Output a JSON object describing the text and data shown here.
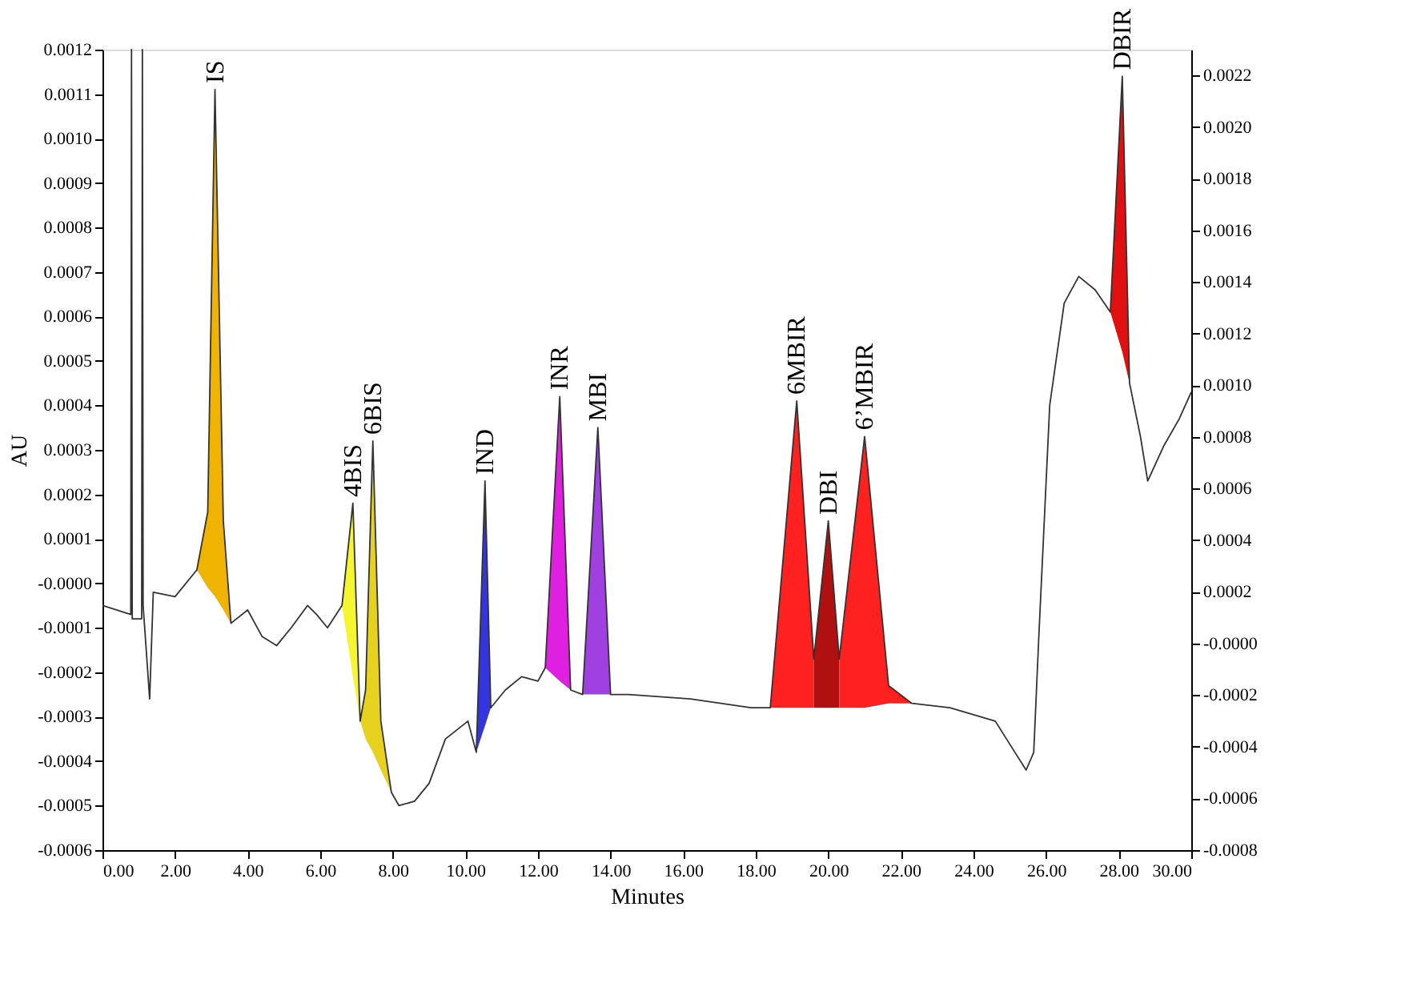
{
  "chart_data": {
    "type": "line",
    "xlabel": "Minutes",
    "ylabel": "AU",
    "xlim": [
      0,
      30
    ],
    "xticks": [
      {
        "value": 0,
        "label": "0.00"
      },
      {
        "value": 2,
        "label": "2.00"
      },
      {
        "value": 4,
        "label": "4.00"
      },
      {
        "value": 6,
        "label": "6.00"
      },
      {
        "value": 8,
        "label": "8.00"
      },
      {
        "value": 10,
        "label": "10.00"
      },
      {
        "value": 12,
        "label": "12.00"
      },
      {
        "value": 14,
        "label": "14.00"
      },
      {
        "value": 16,
        "label": "16.00"
      },
      {
        "value": 18,
        "label": "18.00"
      },
      {
        "value": 20,
        "label": "20.00"
      },
      {
        "value": 22,
        "label": "22.00"
      },
      {
        "value": 24,
        "label": "24.00"
      },
      {
        "value": 26,
        "label": "26.00"
      },
      {
        "value": 28,
        "label": "28.00"
      },
      {
        "value": 30,
        "label": "30.00"
      }
    ],
    "ylim": [
      -0.0006,
      0.0012
    ],
    "yticks": [
      -0.0006,
      -0.0005,
      -0.0004,
      -0.0003,
      -0.0002,
      -0.0001,
      {
        "value": 0,
        "label": "-0.0000"
      },
      0.0001,
      0.0002,
      0.0003,
      0.0004,
      0.0005,
      0.0006,
      0.0007,
      0.0008,
      0.0009,
      {
        "value": 0.001,
        "label": "0.0010"
      },
      0.0011,
      0.0012
    ],
    "y2lim": [
      -0.0008,
      0.0023
    ],
    "y2ticks": [
      -0.0008,
      -0.0006,
      -0.0004,
      -0.0002,
      {
        "value": 0,
        "label": "-0.0000"
      },
      0.0002,
      0.0004,
      0.0006,
      0.0008,
      {
        "value": 0.001,
        "label": "0.0010"
      },
      0.0012,
      0.0014,
      0.0016,
      0.0018,
      {
        "value": 0.002,
        "label": "0.0020"
      },
      0.0022
    ],
    "series": [
      {
        "color": "#f0b400",
        "x": [
          2.6,
          2.9,
          3.1,
          3.33,
          3.54
        ],
        "values": [
          null,
          null,
          null,
          null,
          null
        ],
        "upper": [
          3e-05,
          0.00016,
          0.00111,
          0.00014,
          -9e-05
        ],
        "lower": [
          3e-05,
          -1e-05,
          -3e-05,
          -6e-05,
          -9e-05
        ]
      },
      {
        "color": "#f5f530",
        "x": [
          6.6,
          6.9,
          7.1
        ],
        "values": [
          null,
          null,
          null
        ],
        "upper": [
          -5e-05,
          0.00018,
          -0.00031
        ],
        "lower": [
          -5e-05,
          -0.00021,
          -0.00031
        ]
      },
      {
        "color": "#e6d21e",
        "x": [
          7.1,
          7.25,
          7.45,
          7.67,
          7.96
        ],
        "values": [
          null,
          null,
          null,
          null,
          null
        ],
        "upper": [
          -0.00031,
          -0.00024,
          0.00032,
          -0.00031,
          -0.00047
        ],
        "lower": [
          -0.00031,
          -0.00035,
          -0.00038,
          -0.00042,
          -0.00047
        ]
      },
      {
        "color": "#3535e0",
        "x": [
          10.3,
          10.54,
          10.7
        ],
        "values": [
          null,
          null,
          null
        ],
        "upper": [
          -0.00038,
          0.00023,
          -0.00028
        ],
        "lower": [
          -0.00038,
          -0.00032,
          -0.00028
        ]
      },
      {
        "color": "#e020e0",
        "x": [
          12.2,
          12.6,
          12.9
        ],
        "values": [
          null,
          null,
          null
        ],
        "upper": [
          -0.00019,
          0.00042,
          -0.00024
        ],
        "lower": [
          -0.00019,
          -0.00022,
          -0.00024
        ]
      },
      {
        "color": "#a040e0",
        "x": [
          13.23,
          13.65,
          14.0
        ],
        "values": [
          null,
          null,
          null
        ],
        "upper": [
          -0.00025,
          0.00035,
          -0.00025
        ],
        "lower": [
          -0.00025,
          -0.00025,
          -0.00025
        ]
      },
      {
        "color": "#ff2020",
        "x": [
          18.4,
          19.13,
          19.6
        ],
        "values": [
          null,
          null,
          null
        ],
        "upper": [
          -0.00028,
          0.00041,
          -0.00017
        ],
        "lower": [
          -0.00028,
          -0.00028,
          -0.00028
        ]
      },
      {
        "color": "#b01010",
        "x": [
          19.6,
          20.0,
          20.3
        ],
        "values": [
          null,
          null,
          null
        ],
        "upper": [
          -0.00017,
          0.00014,
          -0.00017
        ],
        "lower": [
          -0.00028,
          -0.00028,
          -0.00028
        ]
      },
      {
        "color": "#ff2020",
        "x": [
          20.3,
          21.0,
          21.66,
          22.3
        ],
        "values": [
          null,
          null,
          null,
          null
        ],
        "upper": [
          -0.00017,
          0.00033,
          -0.00023,
          -0.00027
        ],
        "lower": [
          -0.00028,
          -0.00028,
          -0.00027,
          -0.00027
        ]
      },
      {
        "color": "#e01010",
        "x": [
          27.77,
          28.1,
          28.3
        ],
        "values": [
          null,
          null,
          null
        ],
        "upper": [
          0.00061,
          0.00114,
          0.00045
        ],
        "lower": [
          0.00061,
          0.00052,
          0.00045
        ]
      },
      {
        "type": "line",
        "color": "#333333",
        "x": [
          0,
          0.78,
          0.8,
          0.82,
          1.08,
          1.1,
          1.12,
          1.3,
          1.4,
          2.0,
          2.6,
          2.9,
          3.1,
          3.33,
          3.54,
          4.0,
          4.4,
          4.8,
          5.2,
          5.65,
          5.9,
          6.2,
          6.6,
          6.9,
          7.1,
          7.25,
          7.45,
          7.67,
          7.96,
          8.17,
          8.6,
          9.0,
          9.45,
          10.07,
          10.3,
          10.54,
          10.7,
          11.1,
          11.55,
          12.0,
          12.2,
          12.6,
          12.9,
          13.23,
          13.65,
          14.0,
          14.5,
          16.2,
          17.87,
          18.4,
          19.13,
          19.6,
          20.0,
          20.3,
          21.0,
          21.66,
          22.3,
          23.35,
          24.6,
          25.45,
          25.66,
          25.8,
          26.1,
          26.5,
          26.9,
          27.35,
          27.77,
          28.1,
          28.3,
          28.6,
          28.8,
          29.25,
          29.67,
          30.0
        ],
        "values": [
          -5e-05,
          -7e-05,
          0.0012,
          -8e-05,
          -8e-05,
          0.0012,
          -5e-05,
          -0.00026,
          -2e-05,
          -3e-05,
          3e-05,
          0.00016,
          0.00111,
          0.00014,
          -9e-05,
          -6e-05,
          -0.00012,
          -0.00014,
          -0.0001,
          -5e-05,
          -7e-05,
          -0.0001,
          -5e-05,
          0.00018,
          -0.00031,
          -0.00024,
          0.00032,
          -0.00031,
          -0.00047,
          -0.0005,
          -0.00049,
          -0.00045,
          -0.00035,
          -0.00031,
          -0.00038,
          0.00023,
          -0.00028,
          -0.00024,
          -0.00021,
          -0.00022,
          -0.00019,
          0.00042,
          -0.00024,
          -0.00025,
          0.00035,
          -0.00025,
          -0.00025,
          -0.00026,
          -0.00028,
          -0.00028,
          0.00041,
          -0.00017,
          0.00014,
          -0.00017,
          0.00033,
          -0.00023,
          -0.00027,
          -0.00028,
          -0.00031,
          -0.00042,
          -0.00038,
          -0.00012,
          0.0004,
          0.00063,
          0.00069,
          0.00066,
          0.00061,
          0.00114,
          0.00045,
          0.00033,
          0.00023,
          0.00031,
          0.00037,
          0.00043
        ]
      }
    ],
    "annotations": [
      {
        "text": "IS",
        "x": 3.1,
        "y": 0.00111
      },
      {
        "text": "4BIS",
        "x": 6.9,
        "y": 0.00018
      },
      {
        "text": "6BIS",
        "x": 7.45,
        "y": 0.00032
      },
      {
        "text": "IND",
        "x": 10.54,
        "y": 0.00023
      },
      {
        "text": "INR",
        "x": 12.6,
        "y": 0.00042
      },
      {
        "text": "MBI",
        "x": 13.65,
        "y": 0.00035
      },
      {
        "text": "6MBIR",
        "x": 19.13,
        "y": 0.00041
      },
      {
        "text": "DBI",
        "x": 20.0,
        "y": 0.00014
      },
      {
        "text": "6’MBIR",
        "x": 21.0,
        "y": 0.00033
      },
      {
        "text": "DBIR",
        "x": 28.1,
        "y": 0.00114
      }
    ]
  }
}
